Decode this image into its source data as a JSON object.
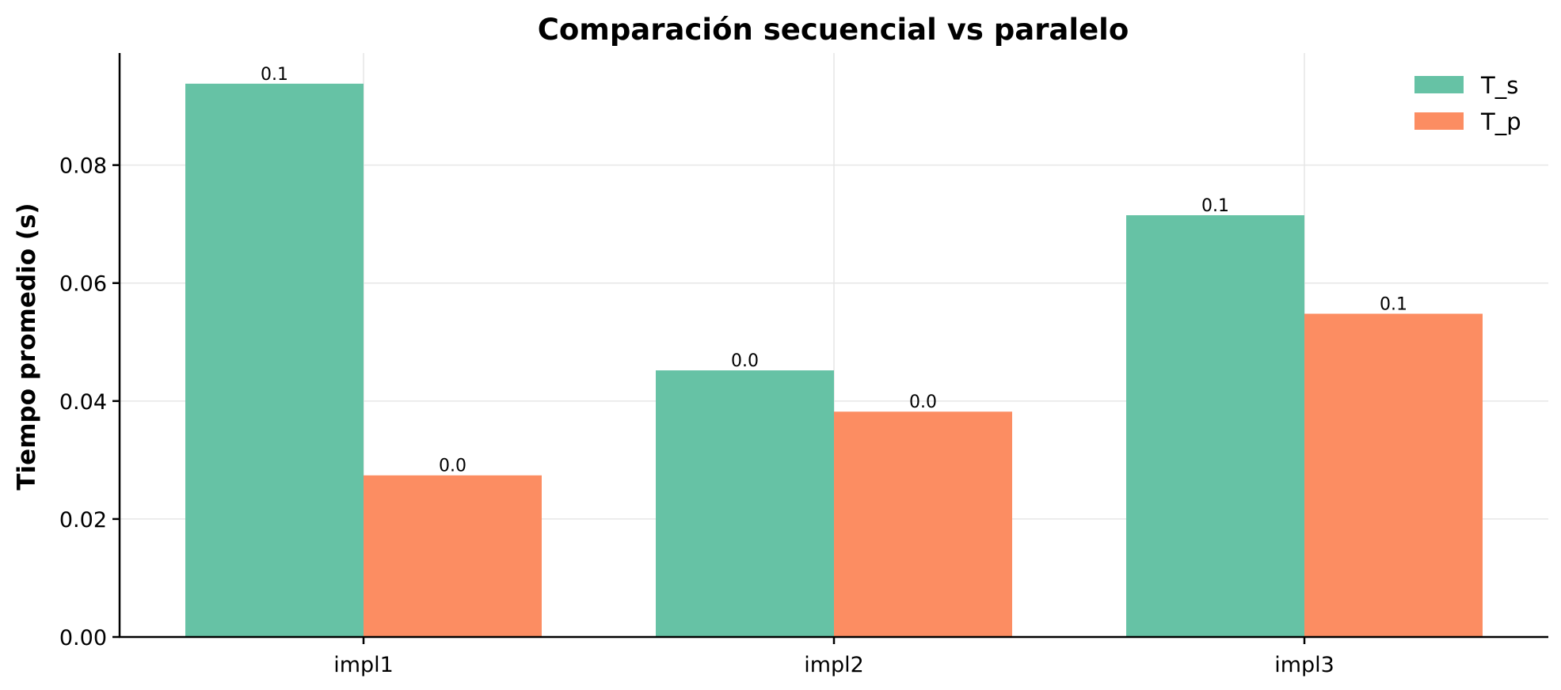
{
  "chart_data": {
    "type": "bar",
    "title": "Comparación secuencial vs paralelo",
    "xlabel": "",
    "ylabel": "Tiempo promedio (s)",
    "categories": [
      "impl1",
      "impl2",
      "impl3"
    ],
    "series": [
      {
        "name": "T_s",
        "color": "#66c2a5",
        "values": [
          0.0938,
          0.0452,
          0.0715
        ],
        "labels": [
          "0.1",
          "0.0",
          "0.1"
        ]
      },
      {
        "name": "T_p",
        "color": "#fc8d62",
        "values": [
          0.0274,
          0.0382,
          0.0548
        ],
        "labels": [
          "0.0",
          "0.0",
          "0.1"
        ]
      }
    ],
    "ylim": [
      0,
      0.099
    ],
    "yticks": [
      0.0,
      0.02,
      0.04,
      0.06,
      0.08
    ],
    "ytick_labels": [
      "0.00",
      "0.02",
      "0.04",
      "0.06",
      "0.08"
    ],
    "grid": true,
    "legend_position": "top-right"
  }
}
